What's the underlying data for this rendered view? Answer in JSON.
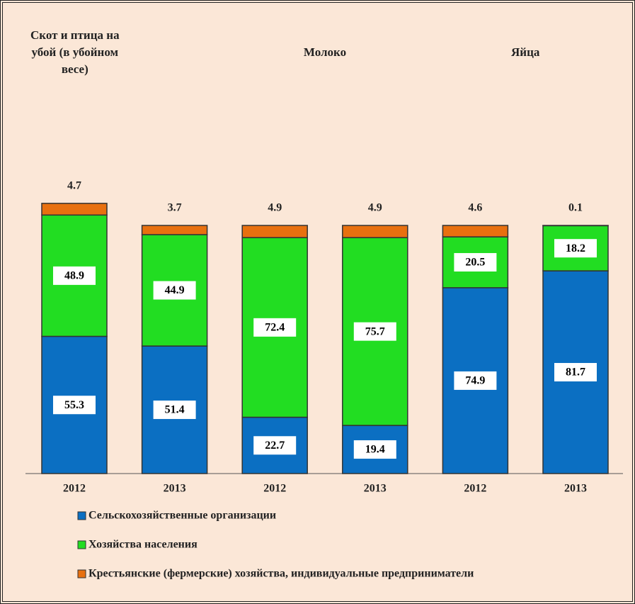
{
  "chart_data": {
    "type": "stacked-bar",
    "groups": [
      "Скот и птица на убой (в убойном весе)",
      "Молоко",
      "Яйца"
    ],
    "categories": [
      "2012",
      "2013",
      "2012",
      "2013",
      "2012",
      "2013"
    ],
    "series": [
      {
        "name": "Сельскохозяйственные организации",
        "color": "#0b6fc2",
        "values": [
          55.3,
          51.4,
          22.7,
          19.4,
          74.9,
          81.7
        ]
      },
      {
        "name": "Хозяйства населения",
        "color": "#22dd22",
        "values": [
          48.9,
          44.9,
          72.4,
          75.7,
          20.5,
          18.2
        ]
      },
      {
        "name": "Крестьянские (фермерские) хозяйства, индивидуальные предприниматели",
        "color": "#e8700f",
        "values": [
          4.7,
          3.7,
          4.9,
          4.9,
          4.6,
          0.1
        ]
      }
    ]
  }
}
